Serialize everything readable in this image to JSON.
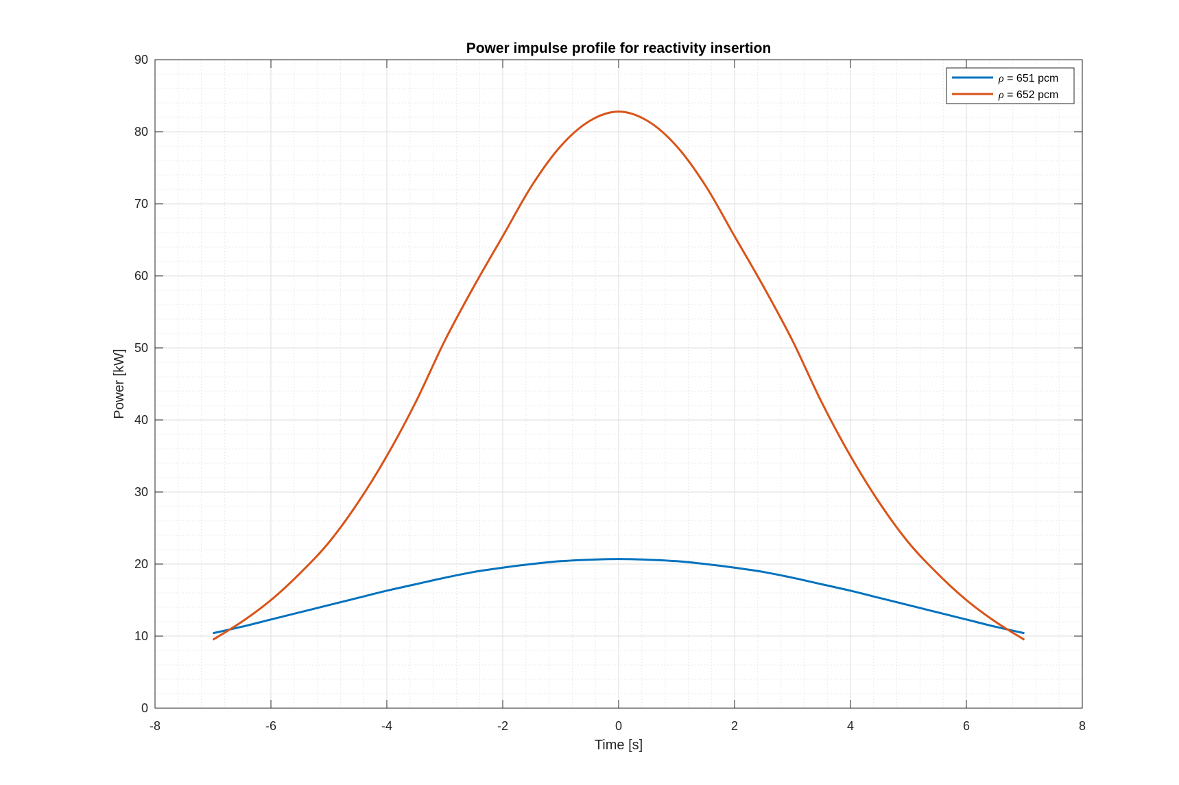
{
  "chart_data": {
    "type": "line",
    "title": "Power impulse profile for reactivity insertion",
    "xlabel": "Time [s]",
    "ylabel": "Power [kW]",
    "xlim": [
      -8,
      8
    ],
    "ylim": [
      0,
      90
    ],
    "xticks": [
      -8,
      -6,
      -4,
      -2,
      0,
      2,
      4,
      6,
      8
    ],
    "yticks": [
      0,
      10,
      20,
      30,
      40,
      50,
      60,
      70,
      80,
      90
    ],
    "grid": true,
    "minor_grid": true,
    "legend_position": "top-right",
    "series": [
      {
        "name_symbol": "ρ",
        "name_rest": " = 651 pcm",
        "color": "#0072BD",
        "x": [
          -7,
          -6.5,
          -6,
          -5.5,
          -5,
          -4.5,
          -4,
          -3.5,
          -3,
          -2.5,
          -2,
          -1.5,
          -1,
          -0.5,
          0,
          0.5,
          1,
          1.5,
          2,
          2.5,
          3,
          3.5,
          4,
          4.5,
          5,
          5.5,
          6,
          6.5,
          7
        ],
        "values": [
          10.4,
          11.3,
          12.3,
          13.3,
          14.3,
          15.3,
          16.3,
          17.2,
          18.1,
          18.9,
          19.5,
          20.0,
          20.4,
          20.6,
          20.7,
          20.6,
          20.4,
          20.0,
          19.5,
          18.9,
          18.1,
          17.2,
          16.3,
          15.3,
          14.3,
          13.3,
          12.3,
          11.3,
          10.4
        ]
      },
      {
        "name_symbol": "ρ",
        "name_rest": " = 652 pcm",
        "color": "#D95319",
        "x": [
          -7,
          -6.5,
          -6,
          -5.5,
          -5,
          -4.5,
          -4,
          -3.5,
          -3,
          -2.5,
          -2,
          -1.5,
          -1,
          -0.5,
          0,
          0.5,
          1,
          1.5,
          2,
          2.5,
          3,
          3.5,
          4,
          4.5,
          5,
          5.5,
          6,
          6.5,
          7
        ],
        "values": [
          9.5,
          12.0,
          15.0,
          18.7,
          23.0,
          28.5,
          35.0,
          42.5,
          51.0,
          58.5,
          65.5,
          72.5,
          78.0,
          81.5,
          82.8,
          81.5,
          78.0,
          72.5,
          65.5,
          58.5,
          51.0,
          42.5,
          35.0,
          28.5,
          23.0,
          18.7,
          15.0,
          12.0,
          9.5
        ]
      }
    ]
  }
}
